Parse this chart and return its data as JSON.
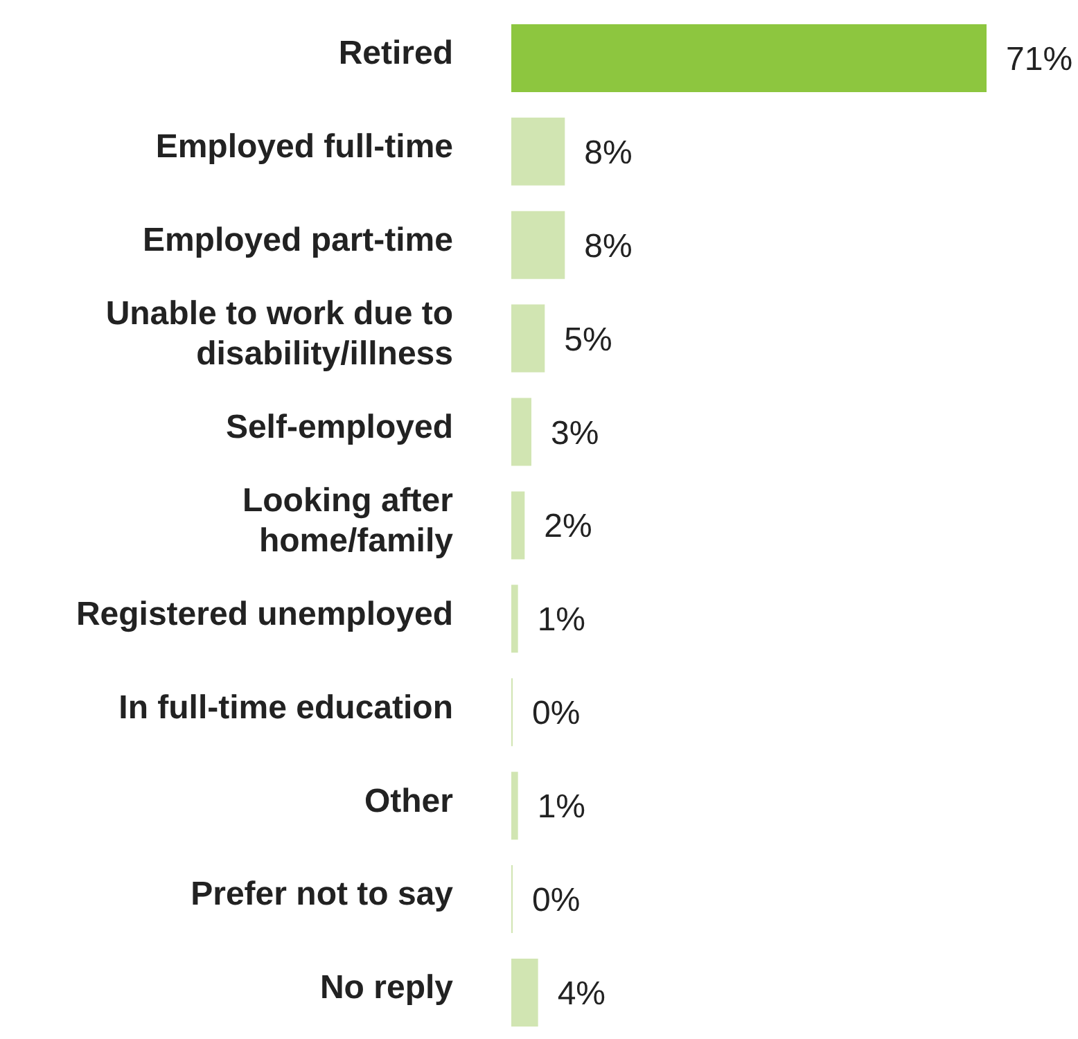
{
  "chart_data": {
    "type": "bar",
    "orientation": "horizontal",
    "categories": [
      "Retired",
      "Employed full-time",
      "Employed part-time",
      "Unable to work due to disability/illness",
      "Self-employed",
      "Looking after home/family",
      "Registered unemployed",
      "In full-time education",
      "Other",
      "Prefer not to say",
      "No reply"
    ],
    "values": [
      71,
      8,
      8,
      5,
      3,
      2,
      1,
      0,
      1,
      0,
      4
    ],
    "colors": [
      "#8dc63f",
      "#d1e5b2",
      "#d1e5b2",
      "#d1e5b2",
      "#d1e5b2",
      "#d1e5b2",
      "#d1e5b2",
      "#d1e5b2",
      "#d1e5b2",
      "#d1e5b2",
      "#d1e5b2"
    ],
    "value_labels": [
      "71%",
      "8%",
      "8%",
      "5%",
      "3%",
      "2%",
      "1%",
      "0%",
      "1%",
      "0%",
      "4%"
    ]
  }
}
